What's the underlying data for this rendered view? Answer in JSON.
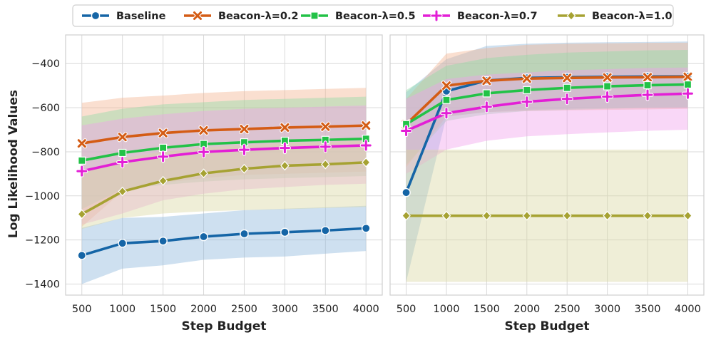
{
  "chart_data": {
    "type": "line",
    "ylabel": "Log Likelihood Values",
    "ylim": [
      -1450,
      -270
    ],
    "yticks": [
      -1400,
      -1200,
      -1000,
      -800,
      -600,
      -400
    ],
    "xlim": [
      300,
      4200
    ],
    "xticks": [
      500,
      1000,
      1500,
      2000,
      2500,
      3000,
      3500,
      4000
    ],
    "x": [
      500,
      1000,
      1500,
      2000,
      2500,
      3000,
      3500,
      4000
    ],
    "legend": {
      "placement": "top-center",
      "entries": [
        "Baseline",
        "Beacon-λ=0.2",
        "Beacon-λ=0.5",
        "Beacon-λ=0.7",
        "Beacon-λ=1.0"
      ]
    },
    "series_style": [
      {
        "name": "Baseline",
        "color": "#1565a6",
        "band_color": "#8ab4dc",
        "marker": "circle"
      },
      {
        "name": "Beacon-λ=0.2",
        "color": "#d45c15",
        "band_color": "#f2b38e",
        "marker": "x"
      },
      {
        "name": "Beacon-λ=0.5",
        "color": "#22c247",
        "band_color": "#8fdca4",
        "marker": "square"
      },
      {
        "name": "Beacon-λ=0.7",
        "color": "#e31ed6",
        "band_color": "#f0a0ec",
        "marker": "plus"
      },
      {
        "name": "Beacon-λ=1.0",
        "color": "#a6a232",
        "band_color": "#d8d6a0",
        "marker": "diamond"
      }
    ],
    "panels": [
      {
        "xlabel": "Step Budget",
        "series": [
          {
            "name": "Baseline",
            "values": [
              -1270,
              -1215,
              -1205,
              -1185,
              -1172,
              -1165,
              -1157,
              -1147
            ],
            "lower": [
              -1400,
              -1330,
              -1315,
              -1290,
              -1280,
              -1275,
              -1262,
              -1250
            ],
            "upper": [
              -1145,
              -1100,
              -1095,
              -1080,
              -1065,
              -1058,
              -1052,
              -1045
            ]
          },
          {
            "name": "Beacon-λ=0.2",
            "values": [
              -762,
              -733,
              -715,
              -703,
              -697,
              -690,
              -686,
              -681
            ],
            "lower": [
              -1140,
              -980,
              -940,
              -920,
              -905,
              -900,
              -895,
              -890
            ],
            "upper": [
              -578,
              -555,
              -545,
              -533,
              -525,
              -520,
              -515,
              -510
            ]
          },
          {
            "name": "Beacon-λ=0.5",
            "values": [
              -840,
              -805,
              -782,
              -765,
              -757,
              -750,
              -746,
              -741
            ],
            "lower": [
              -1060,
              -970,
              -950,
              -935,
              -925,
              -920,
              -915,
              -910
            ],
            "upper": [
              -640,
              -605,
              -585,
              -575,
              -565,
              -560,
              -555,
              -550
            ]
          },
          {
            "name": "Beacon-λ=0.7",
            "values": [
              -888,
              -847,
              -822,
              -801,
              -791,
              -783,
              -777,
              -771
            ],
            "lower": [
              -1130,
              -1080,
              -1020,
              -990,
              -970,
              -960,
              -950,
              -945
            ],
            "upper": [
              -680,
              -650,
              -630,
              -615,
              -605,
              -600,
              -595,
              -590
            ]
          },
          {
            "name": "Beacon-λ=1.0",
            "values": [
              -1083,
              -980,
              -932,
              -898,
              -877,
              -863,
              -857,
              -848
            ],
            "lower": [
              -1150,
              -1100,
              -1080,
              -1070,
              -1065,
              -1060,
              -1055,
              -1050
            ],
            "upper": [
              -900,
              -830,
              -800,
              -780,
              -770,
              -760,
              -755,
              -750
            ]
          }
        ]
      },
      {
        "xlabel": "Step Budget",
        "series": [
          {
            "name": "Baseline",
            "values": [
              -985,
              -525,
              -477,
              -465,
              -462,
              -460,
              -459,
              -458
            ],
            "lower": [
              -1390,
              -640,
              -620,
              -610,
              -605,
              -600,
              -600,
              -600
            ],
            "upper": [
              -530,
              -380,
              -320,
              -310,
              -305,
              -303,
              -302,
              -300
            ]
          },
          {
            "name": "Beacon-λ=0.2",
            "values": [
              -675,
              -500,
              -478,
              -468,
              -465,
              -463,
              -462,
              -460
            ],
            "lower": [
              -870,
              -640,
              -620,
              -615,
              -612,
              -610,
              -608,
              -605
            ],
            "upper": [
              -560,
              -355,
              -330,
              -315,
              -310,
              -308,
              -306,
              -305
            ]
          },
          {
            "name": "Beacon-λ=0.5",
            "values": [
              -675,
              -565,
              -535,
              -520,
              -510,
              -503,
              -498,
              -495
            ],
            "lower": [
              -860,
              -660,
              -630,
              -615,
              -610,
              -605,
              -600,
              -598
            ],
            "upper": [
              -520,
              -410,
              -375,
              -360,
              -350,
              -345,
              -340,
              -338
            ]
          },
          {
            "name": "Beacon-λ=0.7",
            "values": [
              -705,
              -625,
              -596,
              -573,
              -560,
              -550,
              -542,
              -536
            ],
            "lower": [
              -900,
              -790,
              -750,
              -730,
              -720,
              -712,
              -705,
              -700
            ],
            "upper": [
              -560,
              -470,
              -450,
              -440,
              -430,
              -425,
              -420,
              -418
            ]
          },
          {
            "name": "Beacon-λ=1.0",
            "values": [
              -1090,
              -1090,
              -1090,
              -1090,
              -1090,
              -1090,
              -1090,
              -1090
            ],
            "lower": [
              -1390,
              -1390,
              -1390,
              -1390,
              -1390,
              -1390,
              -1390,
              -1390
            ],
            "upper": [
              -790,
              -790,
              -790,
              -790,
              -790,
              -790,
              -790,
              -790
            ]
          }
        ]
      }
    ]
  }
}
